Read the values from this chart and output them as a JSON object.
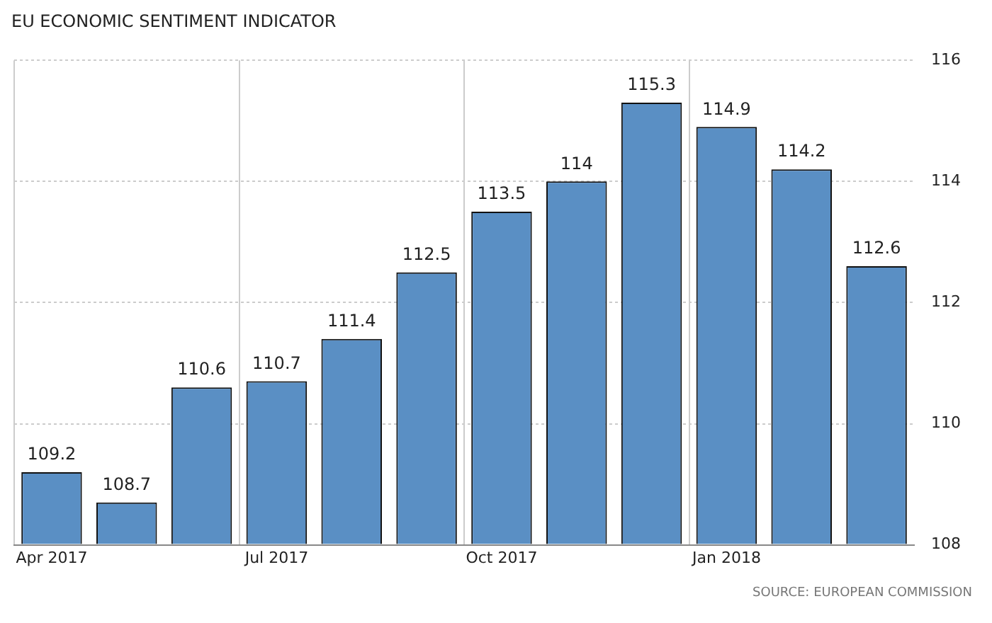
{
  "chart_data": {
    "type": "bar",
    "title": "EU ECONOMIC SENTIMENT INDICATOR",
    "categories": [
      "Apr 2017",
      null,
      null,
      "Jul 2017",
      null,
      null,
      "Oct 2017",
      null,
      null,
      "Jan 2018",
      null,
      null
    ],
    "values": [
      109.2,
      108.7,
      110.6,
      110.7,
      111.4,
      112.5,
      113.5,
      114,
      115.3,
      114.9,
      114.2,
      112.6
    ],
    "color": "#5a8fc4",
    "ylim": [
      108,
      116
    ],
    "yticks": [
      108,
      110,
      112,
      114,
      116
    ],
    "grid": true,
    "data_labels": true,
    "annotations": [
      "SOURCE: EUROPEAN COMMISSION"
    ]
  }
}
